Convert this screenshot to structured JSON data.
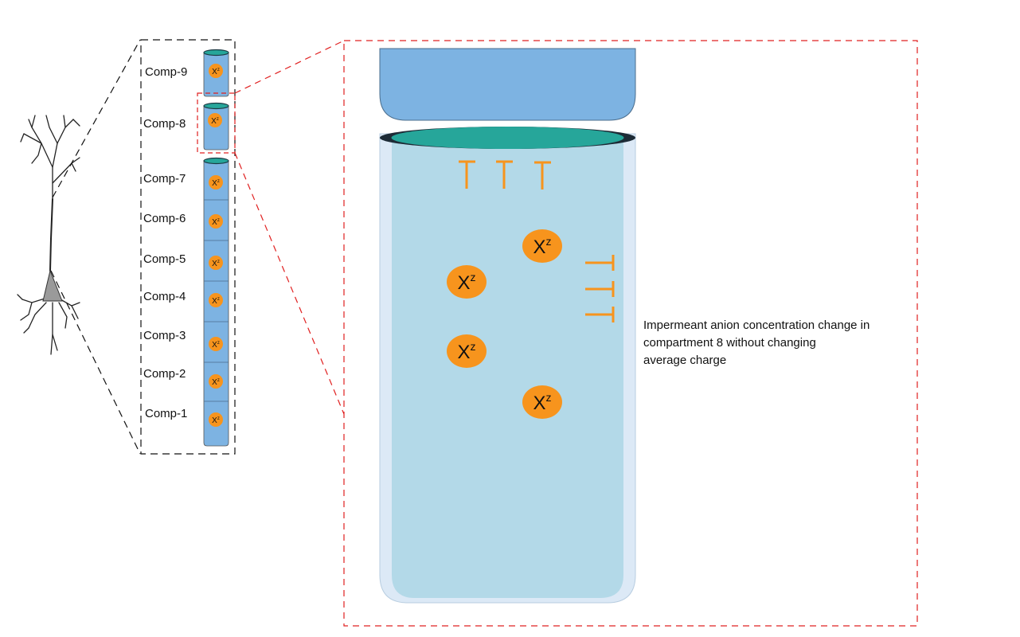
{
  "compartments": [
    {
      "label": "Comp-9",
      "ion": "X",
      "charge": "z"
    },
    {
      "label": "Comp-8",
      "ion": "X",
      "charge": "z"
    },
    {
      "label": "Comp-7",
      "ion": "X",
      "charge": "z"
    },
    {
      "label": "Comp-6",
      "ion": "X",
      "charge": "z"
    },
    {
      "label": "Comp-5",
      "ion": "X",
      "charge": "z"
    },
    {
      "label": "Comp-4",
      "ion": "X",
      "charge": "z"
    },
    {
      "label": "Comp-3",
      "ion": "X",
      "charge": "z"
    },
    {
      "label": "Comp-2",
      "ion": "X",
      "charge": "z"
    },
    {
      "label": "Comp-1",
      "ion": "X",
      "charge": "z"
    }
  ],
  "zoom": {
    "ions": [
      {
        "symbol": "X",
        "charge": "z"
      },
      {
        "symbol": "X",
        "charge": "z"
      },
      {
        "symbol": "X",
        "charge": "z"
      },
      {
        "symbol": "X",
        "charge": "z"
      }
    ]
  },
  "caption": {
    "line1": "Impermeant anion concentration change in",
    "line2": "compartment 8 without changing",
    "line3": "average charge"
  },
  "colors": {
    "ion": "#f7941d",
    "compartment_fill": "#7db3e2",
    "compartment_top": "#26a69a",
    "inner_fluid": "#b3d9e8",
    "outer_wall": "#dce9f6",
    "dashed_red": "#e02020",
    "dashed_black": "#111111"
  }
}
